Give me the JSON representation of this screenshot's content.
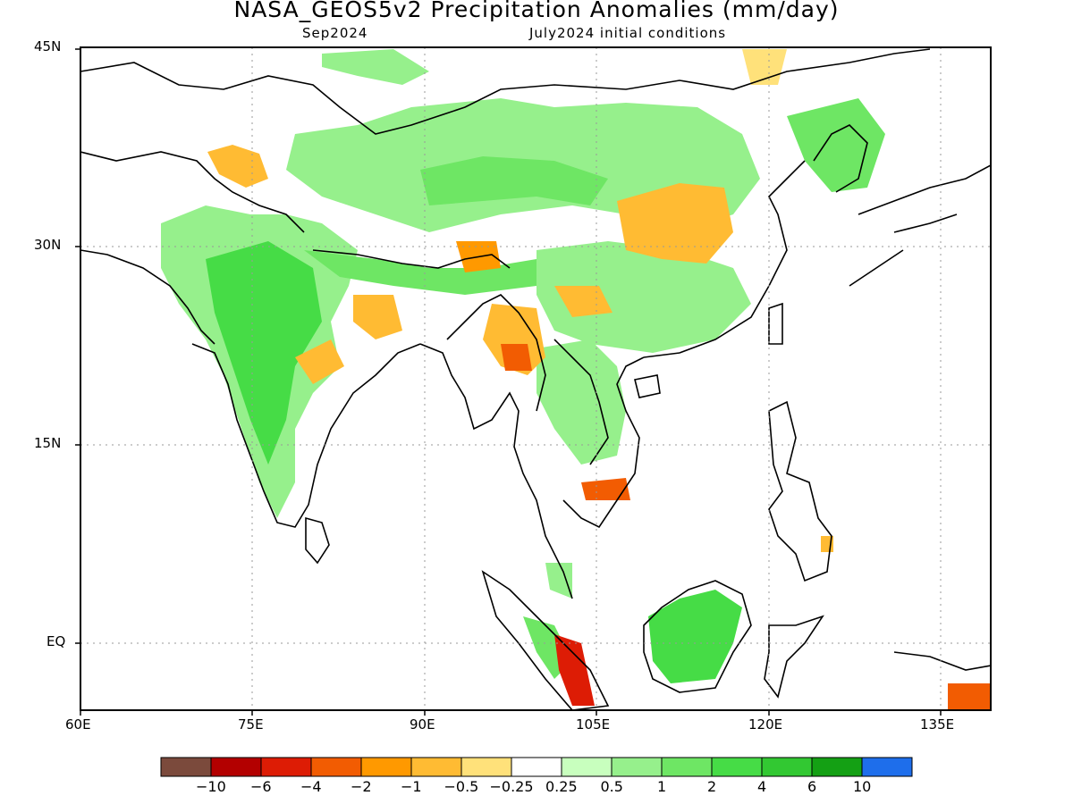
{
  "title": "NASA_GEOS5v2 Precipitation Anomalies (mm/day)",
  "subtitle_left": "Sep2024",
  "subtitle_right": "July2024 initial conditions",
  "axes": {
    "lat_labels": [
      "45N",
      "30N",
      "15N",
      "EQ"
    ],
    "lon_labels": [
      "60E",
      "75E",
      "90E",
      "105E",
      "120E",
      "135E"
    ]
  },
  "colorbar": {
    "colors": [
      "#7b4a3c",
      "#b30000",
      "#dd1c05",
      "#f25c02",
      "#ff9900",
      "#ffbb33",
      "#ffe17a",
      "#ffffff",
      "#c8ffbe",
      "#96f08c",
      "#6ee664",
      "#46dc46",
      "#32c832",
      "#14a014",
      "#1e6eeb"
    ],
    "labels": [
      "−10",
      "−6",
      "−4",
      "−2",
      "−1",
      "−0.5",
      "−0.25",
      "0.25",
      "0.5",
      "1",
      "2",
      "4",
      "6",
      "10"
    ]
  }
}
